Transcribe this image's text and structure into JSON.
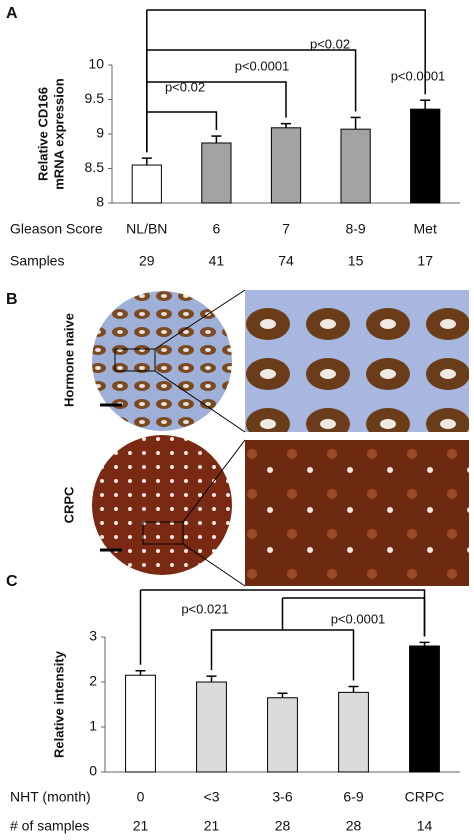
{
  "panels": [
    "A",
    "B",
    "C"
  ],
  "panel_b": {
    "rows": [
      "Hormone naive",
      "CRPC"
    ]
  },
  "chart_data": [
    {
      "type": "bar",
      "ylabel": [
        "Relative CD166",
        "mRNA expression"
      ],
      "category_label": "Gleason Score",
      "categories": [
        "NL/BN",
        "6",
        "7",
        "8-9",
        "Met"
      ],
      "sample_label": "Samples",
      "samples": [
        29,
        41,
        74,
        15,
        17
      ],
      "series": [
        {
          "values": [
            8.55,
            8.87,
            9.09,
            9.07,
            9.36
          ],
          "errors": [
            0.1,
            0.1,
            0.06,
            0.17,
            0.13
          ],
          "colors": [
            "#ffffff",
            "#a3a3a3",
            "#a3a3a3",
            "#a3a3a3",
            "#000000"
          ]
        }
      ],
      "ylim": [
        8,
        10
      ],
      "yticks": [
        8,
        8.5,
        9,
        9.5,
        10
      ],
      "annotations": [
        {
          "text": "p<0.02",
          "from": 0,
          "to": 1
        },
        {
          "text": "p<0.0001",
          "from": 0,
          "to": 2
        },
        {
          "text": "p<0.02",
          "from": 0,
          "to": 3
        },
        {
          "text": "p<0.0001",
          "from": 0,
          "to": 4
        }
      ]
    },
    {
      "type": "bar",
      "ylabel": [
        "Relative intensity"
      ],
      "category_label": "NHT (month)",
      "categories": [
        "0",
        "<3",
        "3-6",
        "6-9",
        "CRPC"
      ],
      "sample_label": "# of samples",
      "samples": [
        21,
        21,
        28,
        28,
        14
      ],
      "series": [
        {
          "values": [
            2.15,
            2.0,
            1.65,
            1.77,
            2.8
          ],
          "errors": [
            0.1,
            0.13,
            0.1,
            0.13,
            0.08
          ],
          "colors": [
            "#ffffff",
            "#d9dcd8",
            "#d9dcd8",
            "#d9dcd8",
            "#000000"
          ]
        }
      ],
      "ylim": [
        0,
        3
      ],
      "yticks": [
        0,
        1,
        2,
        3
      ],
      "annotations": [
        {
          "text": "p<0.021",
          "from": [
            0
          ],
          "to": 4
        },
        {
          "text": "p<0.0001",
          "from": [
            1,
            3
          ],
          "to": 4
        }
      ]
    }
  ]
}
